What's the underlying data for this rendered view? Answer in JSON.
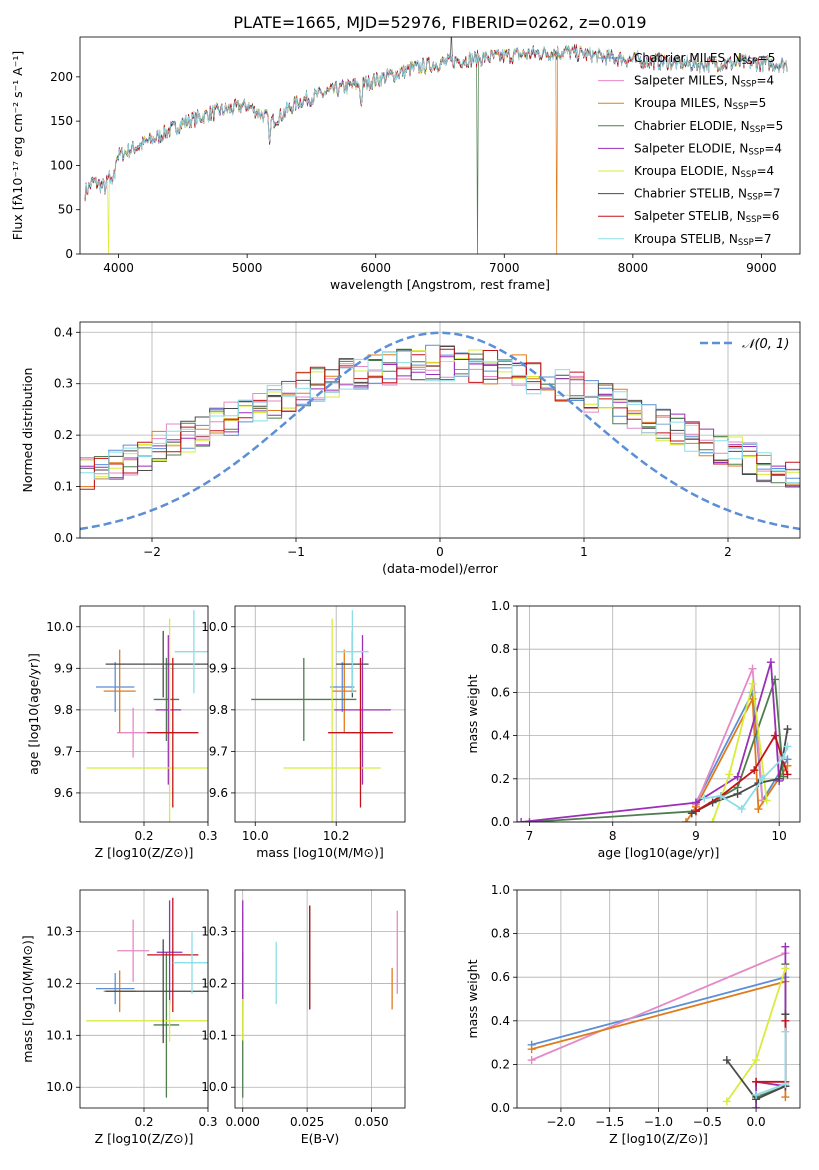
{
  "title": "PLATE=1665, MJD=52976, FIBERID=0262, z=0.019",
  "legend": [
    {
      "name": "Chabrier MILES, N",
      "sub": "SSP",
      "suffix": "=5",
      "color": "#5b8fd6"
    },
    {
      "name": "Salpeter MILES, N",
      "sub": "SSP",
      "suffix": "=4",
      "color": "#e48ac6"
    },
    {
      "name": "Kroupa MILES, N",
      "sub": "SSP",
      "suffix": "=5",
      "color": "#e07b1c"
    },
    {
      "name": "Chabrier ELODIE, N",
      "sub": "SSP",
      "suffix": "=5",
      "color": "#4e7d4e"
    },
    {
      "name": "Salpeter ELODIE, N",
      "sub": "SSP",
      "suffix": "=4",
      "color": "#9a2fb8"
    },
    {
      "name": "Kroupa ELODIE, N",
      "sub": "SSP",
      "suffix": "=4",
      "color": "#d8ec3c"
    },
    {
      "name": "Chabrier STELIB, N",
      "sub": "SSP",
      "suffix": "=7",
      "color": "#4a4a4a"
    },
    {
      "name": "Salpeter STELIB, N",
      "sub": "SSP",
      "suffix": "=6",
      "color": "#c3121a"
    },
    {
      "name": "Kroupa STELIB, N",
      "sub": "SSP",
      "suffix": "=7",
      "color": "#8cdde8"
    }
  ],
  "chart_data": [
    {
      "id": "spectrum",
      "type": "line",
      "xlabel": "wavelength [Angstrom, rest frame]",
      "ylabel": "Flux [fλ10⁻¹⁷ erg cm⁻² s⁻¹ A⁻¹]",
      "xlim": [
        3700,
        9300
      ],
      "ylim": [
        0,
        245
      ],
      "xticks": [
        "4000",
        "5000",
        "6000",
        "7000",
        "8000",
        "9000"
      ],
      "yticks": [
        "0",
        "50",
        "100",
        "150",
        "200"
      ],
      "anchors": [
        [
          3740,
          70
        ],
        [
          3800,
          82
        ],
        [
          3900,
          75
        ],
        [
          3960,
          108
        ],
        [
          4100,
          118
        ],
        [
          4300,
          132
        ],
        [
          4500,
          148
        ],
        [
          4700,
          158
        ],
        [
          5000,
          168
        ],
        [
          5200,
          150
        ],
        [
          5400,
          172
        ],
        [
          5700,
          186
        ],
        [
          6000,
          196
        ],
        [
          6300,
          210
        ],
        [
          6600,
          218
        ],
        [
          6900,
          222
        ],
        [
          7200,
          226
        ],
        [
          7500,
          228
        ],
        [
          7800,
          222
        ],
        [
          8100,
          218
        ],
        [
          8500,
          214
        ],
        [
          8900,
          216
        ],
        [
          9200,
          214
        ]
      ],
      "dropouts": [
        {
          "series": "Kroupa ELODIE",
          "x": 3920
        },
        {
          "series": "Chabrier ELODIE",
          "x": 6790
        },
        {
          "series": "Kroupa MILES",
          "x": 7410
        }
      ],
      "grid": false
    },
    {
      "id": "residuals",
      "type": "step-histogram",
      "xlabel": "(data-model)/error",
      "ylabel": "Normed distribution",
      "xlim": [
        -2.5,
        2.5
      ],
      "ylim": [
        0,
        0.42
      ],
      "xticks": [
        "−2",
        "−1",
        "0",
        "1",
        "2"
      ],
      "yticks": [
        "0.0",
        "0.1",
        "0.2",
        "0.3",
        "0.4"
      ],
      "bin_width": 0.1,
      "reference": {
        "label": "𝒩(0, 1)",
        "type": "normal",
        "mean": 0,
        "sigma": 1
      },
      "grid": true
    },
    {
      "id": "age-vs-Z",
      "type": "errorbar",
      "xlabel": "Z [log10(Z/Z⊙)]",
      "ylabel": "age  [log10(age/yr)]",
      "xlim": [
        0.1,
        0.3
      ],
      "ylim": [
        9.53,
        10.05
      ],
      "xticks": [
        "0.2",
        "0.3"
      ],
      "yticks": [
        "9.6",
        "9.7",
        "9.8",
        "9.9",
        "10.0"
      ],
      "points": [
        {
          "series": "Chabrier MILES",
          "x": 0.155,
          "xerr": 0.03,
          "y": 9.855,
          "yerr": 0.06
        },
        {
          "series": "Salpeter MILES",
          "x": 0.183,
          "xerr": 0.025,
          "y": 9.745,
          "yerr": 0.06
        },
        {
          "series": "Kroupa MILES",
          "x": 0.162,
          "xerr": 0.025,
          "y": 9.845,
          "yerr": 0.1
        },
        {
          "series": "Chabrier ELODIE",
          "x": 0.235,
          "xerr": 0.02,
          "y": 9.825,
          "yerr": 0.1
        },
        {
          "series": "Salpeter ELODIE",
          "x": 0.238,
          "xerr": 0.02,
          "y": 9.8,
          "yerr": 0.18
        },
        {
          "series": "Kroupa ELODIE",
          "x": 0.24,
          "xerr": 0.13,
          "y": 9.66,
          "yerr": 0.36
        },
        {
          "series": "Chabrier STELIB",
          "x": 0.23,
          "xerr": 0.09,
          "y": 9.91,
          "yerr": 0.08
        },
        {
          "series": "Salpeter STELIB",
          "x": 0.245,
          "xerr": 0.04,
          "y": 9.745,
          "yerr": 0.18
        },
        {
          "series": "Kroupa STELIB",
          "x": 0.278,
          "xerr": 0.03,
          "y": 9.94,
          "yerr": 0.1
        }
      ]
    },
    {
      "id": "age-vs-mass",
      "type": "errorbar",
      "xlabel": "mass [log10(M/M⊙)]",
      "ylabel": "",
      "xlim": [
        9.95,
        10.37
      ],
      "ylim": [
        9.53,
        10.05
      ],
      "xticks": [
        "10.0",
        "10.2"
      ],
      "yticks": [
        "9.6",
        "9.7",
        "9.8",
        "9.9",
        "10.0"
      ],
      "points": [
        {
          "series": "Chabrier MILES",
          "x": 10.215,
          "xerr": 0.03,
          "y": 9.855,
          "yerr": 0.06
        },
        {
          "series": "Salpeter MILES",
          "x": 10.26,
          "xerr": 0.04,
          "y": 9.745,
          "yerr": 0.06
        },
        {
          "series": "Kroupa MILES",
          "x": 10.22,
          "xerr": 0.03,
          "y": 9.845,
          "yerr": 0.1
        },
        {
          "series": "Chabrier ELODIE",
          "x": 10.12,
          "xerr": 0.13,
          "y": 9.825,
          "yerr": 0.1
        },
        {
          "series": "Salpeter ELODIE",
          "x": 10.265,
          "xerr": 0.07,
          "y": 9.8,
          "yerr": 0.18
        },
        {
          "series": "Kroupa ELODIE",
          "x": 10.19,
          "xerr": 0.12,
          "y": 9.66,
          "yerr": 0.36
        },
        {
          "series": "Chabrier STELIB",
          "x": 10.24,
          "xerr": 0.04,
          "y": 9.91,
          "yerr": 0.08
        },
        {
          "series": "Salpeter STELIB",
          "x": 10.26,
          "xerr": 0.08,
          "y": 9.745,
          "yerr": 0.18
        },
        {
          "series": "Kroupa STELIB",
          "x": 10.24,
          "xerr": 0.04,
          "y": 9.94,
          "yerr": 0.1
        }
      ]
    },
    {
      "id": "weight-vs-age",
      "type": "line",
      "xlabel": "age  [log10(age/yr)]",
      "ylabel": "mass weight",
      "xlim": [
        6.85,
        10.25
      ],
      "ylim": [
        0,
        1
      ],
      "xticks": [
        "7",
        "8",
        "9",
        "10"
      ],
      "yticks": [
        "0.0",
        "0.2",
        "0.4",
        "0.6",
        "0.8",
        "1.0"
      ],
      "series": [
        {
          "name": "Chabrier MILES",
          "x": [
            9.0,
            9.68,
            9.8,
            10.1
          ],
          "y": [
            0.09,
            0.6,
            0.1,
            0.29
          ]
        },
        {
          "name": "Salpeter MILES",
          "x": [
            9.0,
            9.68,
            9.8
          ],
          "y": [
            0.08,
            0.71,
            0.1
          ]
        },
        {
          "name": "Kroupa MILES",
          "x": [
            8.88,
            9.0,
            9.68,
            9.75,
            10.1
          ],
          "y": [
            0.0,
            0.07,
            0.57,
            0.06,
            0.26
          ]
        },
        {
          "name": "Chabrier ELODIE",
          "x": [
            7.0,
            9.0,
            9.5,
            9.95,
            10.05
          ],
          "y": [
            0.0,
            0.05,
            0.16,
            0.66,
            0.21
          ]
        },
        {
          "name": "Salpeter ELODIE",
          "x": [
            6.9,
            9.0,
            9.5,
            9.9,
            10.0
          ],
          "y": [
            0.0,
            0.09,
            0.21,
            0.74,
            0.19
          ]
        },
        {
          "name": "Kroupa ELODIE",
          "x": [
            9.2,
            9.4,
            9.68,
            9.85
          ],
          "y": [
            0.0,
            0.22,
            0.64,
            0.1
          ]
        },
        {
          "name": "Chabrier STELIB",
          "x": [
            8.95,
            9.2,
            9.5,
            9.75,
            10.0,
            10.1
          ],
          "y": [
            0.04,
            0.09,
            0.13,
            0.18,
            0.2,
            0.43
          ]
        },
        {
          "name": "Salpeter STELIB",
          "x": [
            9.0,
            9.3,
            9.7,
            9.95,
            10.1
          ],
          "y": [
            0.05,
            0.12,
            0.24,
            0.4,
            0.22
          ]
        },
        {
          "name": "Kroupa STELIB",
          "x": [
            9.1,
            9.3,
            9.55,
            9.8,
            10.05,
            10.1
          ],
          "y": [
            0.11,
            0.12,
            0.06,
            0.2,
            0.3,
            0.35
          ]
        }
      ],
      "grid": true
    },
    {
      "id": "mass-vs-Z",
      "type": "errorbar",
      "xlabel": "Z [log10(Z/Z⊙)]",
      "ylabel": "mass [log10(M/M⊙)]",
      "xlim": [
        0.1,
        0.3
      ],
      "ylim": [
        9.96,
        10.38
      ],
      "xticks": [
        "0.2",
        "0.3"
      ],
      "yticks": [
        "10.0",
        "10.1",
        "10.2",
        "10.3"
      ],
      "points": [
        {
          "series": "Chabrier MILES",
          "x": 0.155,
          "xerr": 0.03,
          "y": 10.19,
          "yerr": 0.03
        },
        {
          "series": "Salpeter MILES",
          "x": 0.183,
          "xerr": 0.025,
          "y": 10.263,
          "yerr": 0.06
        },
        {
          "series": "Kroupa MILES",
          "x": 0.162,
          "xerr": 0.025,
          "y": 10.185,
          "yerr": 0.04
        },
        {
          "series": "Chabrier ELODIE",
          "x": 0.235,
          "xerr": 0.02,
          "y": 10.12,
          "yerr": 0.14
        },
        {
          "series": "Salpeter ELODIE",
          "x": 0.24,
          "xerr": 0.02,
          "y": 10.26,
          "yerr": 0.1
        },
        {
          "series": "Kroupa ELODIE",
          "x": 0.24,
          "xerr": 0.13,
          "y": 10.128,
          "yerr": 0.04
        },
        {
          "series": "Chabrier STELIB",
          "x": 0.23,
          "xerr": 0.09,
          "y": 10.185,
          "yerr": 0.1
        },
        {
          "series": "Salpeter STELIB",
          "x": 0.245,
          "xerr": 0.04,
          "y": 10.255,
          "yerr": 0.11
        },
        {
          "series": "Kroupa STELIB",
          "x": 0.275,
          "xerr": 0.03,
          "y": 10.24,
          "yerr": 0.06
        }
      ]
    },
    {
      "id": "mass-vs-EBV",
      "type": "errorbar",
      "xlabel": "E(B-V)",
      "ylabel": "",
      "xlim": [
        -0.003,
        0.063
      ],
      "ylim": [
        9.96,
        10.38
      ],
      "xticks": [
        "0.000",
        "0.025",
        "0.050"
      ],
      "yticks": [
        "10.0",
        "10.1",
        "10.2",
        "10.3"
      ],
      "points": [
        {
          "series": "Chabrier MILES",
          "x": 0.0,
          "xerr": 0,
          "y": 10.19,
          "yerr": 0.03
        },
        {
          "series": "Salpeter MILES",
          "x": 0.0,
          "xerr": 0,
          "y": 10.28,
          "yerr": 0.06
        },
        {
          "series": "Kroupa MILES",
          "x": 0.0,
          "xerr": 0,
          "y": 10.19,
          "yerr": 0.04
        },
        {
          "series": "Chabrier ELODIE",
          "x": 0.0,
          "xerr": 0,
          "y": 10.12,
          "yerr": 0.14
        },
        {
          "series": "Salpeter ELODIE",
          "x": 0.0,
          "xerr": 0,
          "y": 10.26,
          "yerr": 0.1
        },
        {
          "series": "Kroupa ELODIE",
          "x": 0.0,
          "xerr": 0,
          "y": 10.13,
          "yerr": 0.04
        },
        {
          "series": "Chabrier STELIB",
          "x": 0.026,
          "xerr": 0,
          "y": 10.25,
          "yerr": 0.1
        },
        {
          "series": "Salpeter STELIB",
          "x": 0.026,
          "xerr": 0,
          "y": 10.25,
          "yerr": 0.1
        },
        {
          "series": "Kroupa STELIB",
          "x": 0.013,
          "xerr": 0,
          "y": 10.22,
          "yerr": 0.06
        },
        {
          "series": "Kroupa MILES",
          "x": 0.058,
          "xerr": 0,
          "y": 10.19,
          "yerr": 0.04
        },
        {
          "series": "Salpeter MILES",
          "x": 0.06,
          "xerr": 0,
          "y": 10.26,
          "yerr": 0.08
        }
      ]
    },
    {
      "id": "weight-vs-Z",
      "type": "line",
      "xlabel": "Z [log10(Z/Z⊙)]",
      "ylabel": "mass weight",
      "xlim": [
        -2.45,
        0.45
      ],
      "ylim": [
        0,
        1
      ],
      "xticks": [
        "−2.0",
        "−1.5",
        "−1.0",
        "−0.5",
        "0.0"
      ],
      "yticks": [
        "0.0",
        "0.2",
        "0.4",
        "0.6",
        "0.8",
        "1.0"
      ],
      "series": [
        {
          "name": "Chabrier MILES",
          "x": [
            -2.3,
            0.3
          ],
          "y": [
            0.29,
            0.6
          ]
        },
        {
          "name": "Salpeter MILES",
          "x": [
            -2.3,
            0.3
          ],
          "y": [
            0.22,
            0.71
          ]
        },
        {
          "name": "Kroupa MILES",
          "x": [
            -2.3,
            0.3,
            0.3
          ],
          "y": [
            0.27,
            0.58,
            0.05
          ]
        },
        {
          "name": "Chabrier ELODIE",
          "x": [
            0.0,
            0.3,
            0.3
          ],
          "y": [
            0.05,
            0.1,
            0.66
          ]
        },
        {
          "name": "Salpeter ELODIE",
          "x": [
            0.0,
            0.0,
            0.3,
            0.3
          ],
          "y": [
            0.0,
            0.12,
            0.1,
            0.74
          ]
        },
        {
          "name": "Kroupa ELODIE",
          "x": [
            -0.3,
            0.0,
            0.3
          ],
          "y": [
            0.03,
            0.22,
            0.64
          ]
        },
        {
          "name": "Chabrier STELIB",
          "x": [
            -0.3,
            0.0,
            0.3,
            0.3
          ],
          "y": [
            0.22,
            0.04,
            0.1,
            0.43
          ]
        },
        {
          "name": "Salpeter STELIB",
          "x": [
            0.0,
            0.3,
            0.3
          ],
          "y": [
            0.12,
            0.12,
            0.4
          ]
        },
        {
          "name": "Kroupa STELIB",
          "x": [
            0.0,
            0.3,
            0.3
          ],
          "y": [
            0.06,
            0.11,
            0.35
          ]
        }
      ],
      "grid": true
    }
  ]
}
